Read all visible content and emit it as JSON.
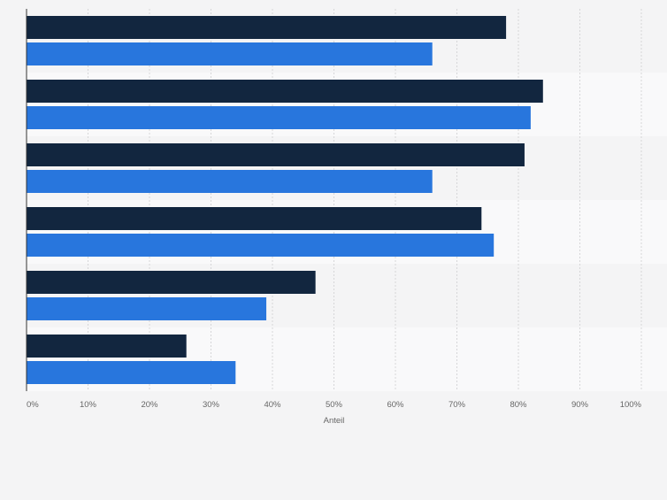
{
  "chart_data": {
    "type": "bar",
    "orientation": "horizontal",
    "categories": [
      "",
      "",
      "",
      "",
      "",
      ""
    ],
    "series": [
      {
        "name": "",
        "color": "#12263f",
        "values": [
          78,
          84,
          81,
          74,
          47,
          26
        ]
      },
      {
        "name": "",
        "color": "#2876dd",
        "values": [
          66,
          82,
          66,
          76,
          39,
          34
        ]
      }
    ],
    "xlabel": "Anteil",
    "ylabel": "",
    "xlim": [
      0,
      100
    ],
    "xticks": [
      "0%",
      "10%",
      "20%",
      "30%",
      "40%",
      "50%",
      "60%",
      "70%",
      "80%",
      "90%",
      "100%"
    ],
    "grid": "vertical dashed",
    "legend": "none",
    "band_colors": [
      "#f4f4f5",
      "#f9f9fa"
    ]
  }
}
